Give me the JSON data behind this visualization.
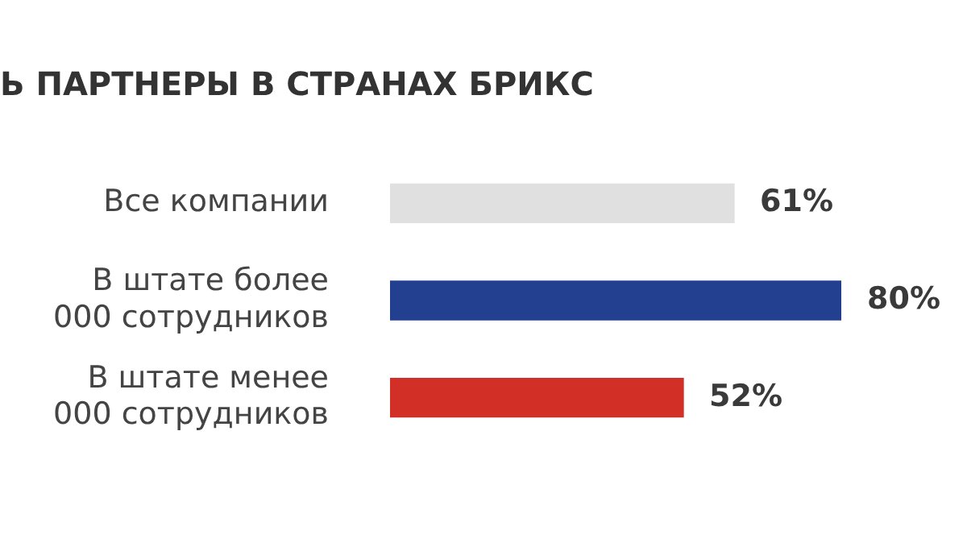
{
  "chart_data": {
    "type": "bar",
    "orientation": "horizontal",
    "title": "Ь ПАРТНЕРЫ В СТРАНАХ БРИКС",
    "categories": [
      "Все компании",
      "В штате более\n000 сотрудников",
      "В штате менее\n000 сотрудников"
    ],
    "values": [
      61,
      80,
      52
    ],
    "colors": [
      "#e0e0e0",
      "#233f8f",
      "#d22f27"
    ],
    "value_labels": [
      "61%",
      "80%",
      "52%"
    ],
    "tick_labels": "y",
    "legend": false
  }
}
